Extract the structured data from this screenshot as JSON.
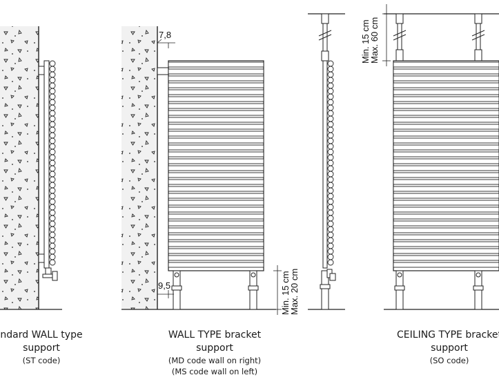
{
  "dimensions": {
    "wall_offset_top": "7,8",
    "wall_offset_bottom": "9,5",
    "floor_min": "Min. 15 cm",
    "floor_max": "Max. 20 cm",
    "ceiling_min": "Min. 15 cm",
    "ceiling_max": "Max. 60 cm"
  },
  "captions": {
    "standard": {
      "title": "ndard WALL type",
      "sub": "support",
      "code": "(ST code)"
    },
    "wall_bracket": {
      "title": "WALL TYPE bracket",
      "sub": "support",
      "code1": "(MD code wall on right)",
      "code2": "(MS code wall on left)"
    },
    "ceiling": {
      "title": "CEILING TYPE bracket",
      "sub": "support",
      "code": "(SO code)"
    }
  },
  "colors": {
    "stroke": "#222222",
    "wall_fill": "#f1f1f1"
  }
}
